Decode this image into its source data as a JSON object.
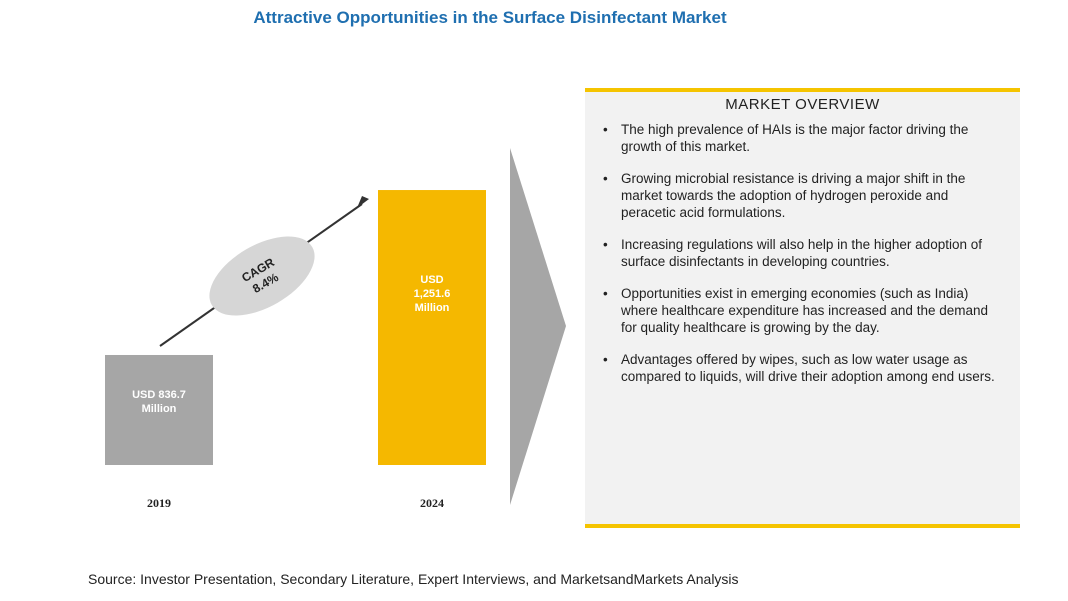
{
  "chart_data": {
    "type": "bar",
    "title": "Attractive Opportunities in the Surface Disinfectant Market",
    "categories": [
      "2019",
      "2024"
    ],
    "values": [
      836.7,
      1251.6
    ],
    "value_labels": [
      "USD 836.7 Million",
      "USD 1,251.6 Million"
    ],
    "colors": [
      "#a6a6a6",
      "#f5b800"
    ],
    "ylim": [
      560,
      1260
    ],
    "annotation": "CAGR 8.4%"
  },
  "overview": {
    "heading": "MARKET OVERVIEW",
    "bullets": [
      "The high prevalence of HAIs is the major factor driving the growth of this market.",
      "Growing microbial resistance is driving a major shift in the market towards the adoption of hydrogen peroxide and peracetic acid formulations.",
      "Increasing regulations will also help in the higher adoption of surface disinfectants in developing countries.",
      "Opportunities exist in emerging economies (such as India) where healthcare expenditure has increased and the demand for quality healthcare is growing by the day.",
      "Advantages offered by wipes, such as low water usage as compared to liquids, will drive their adoption among end users."
    ]
  },
  "source": "Source: Investor Presentation, Secondary Literature, Expert Interviews, and MarketsandMarkets Analysis"
}
